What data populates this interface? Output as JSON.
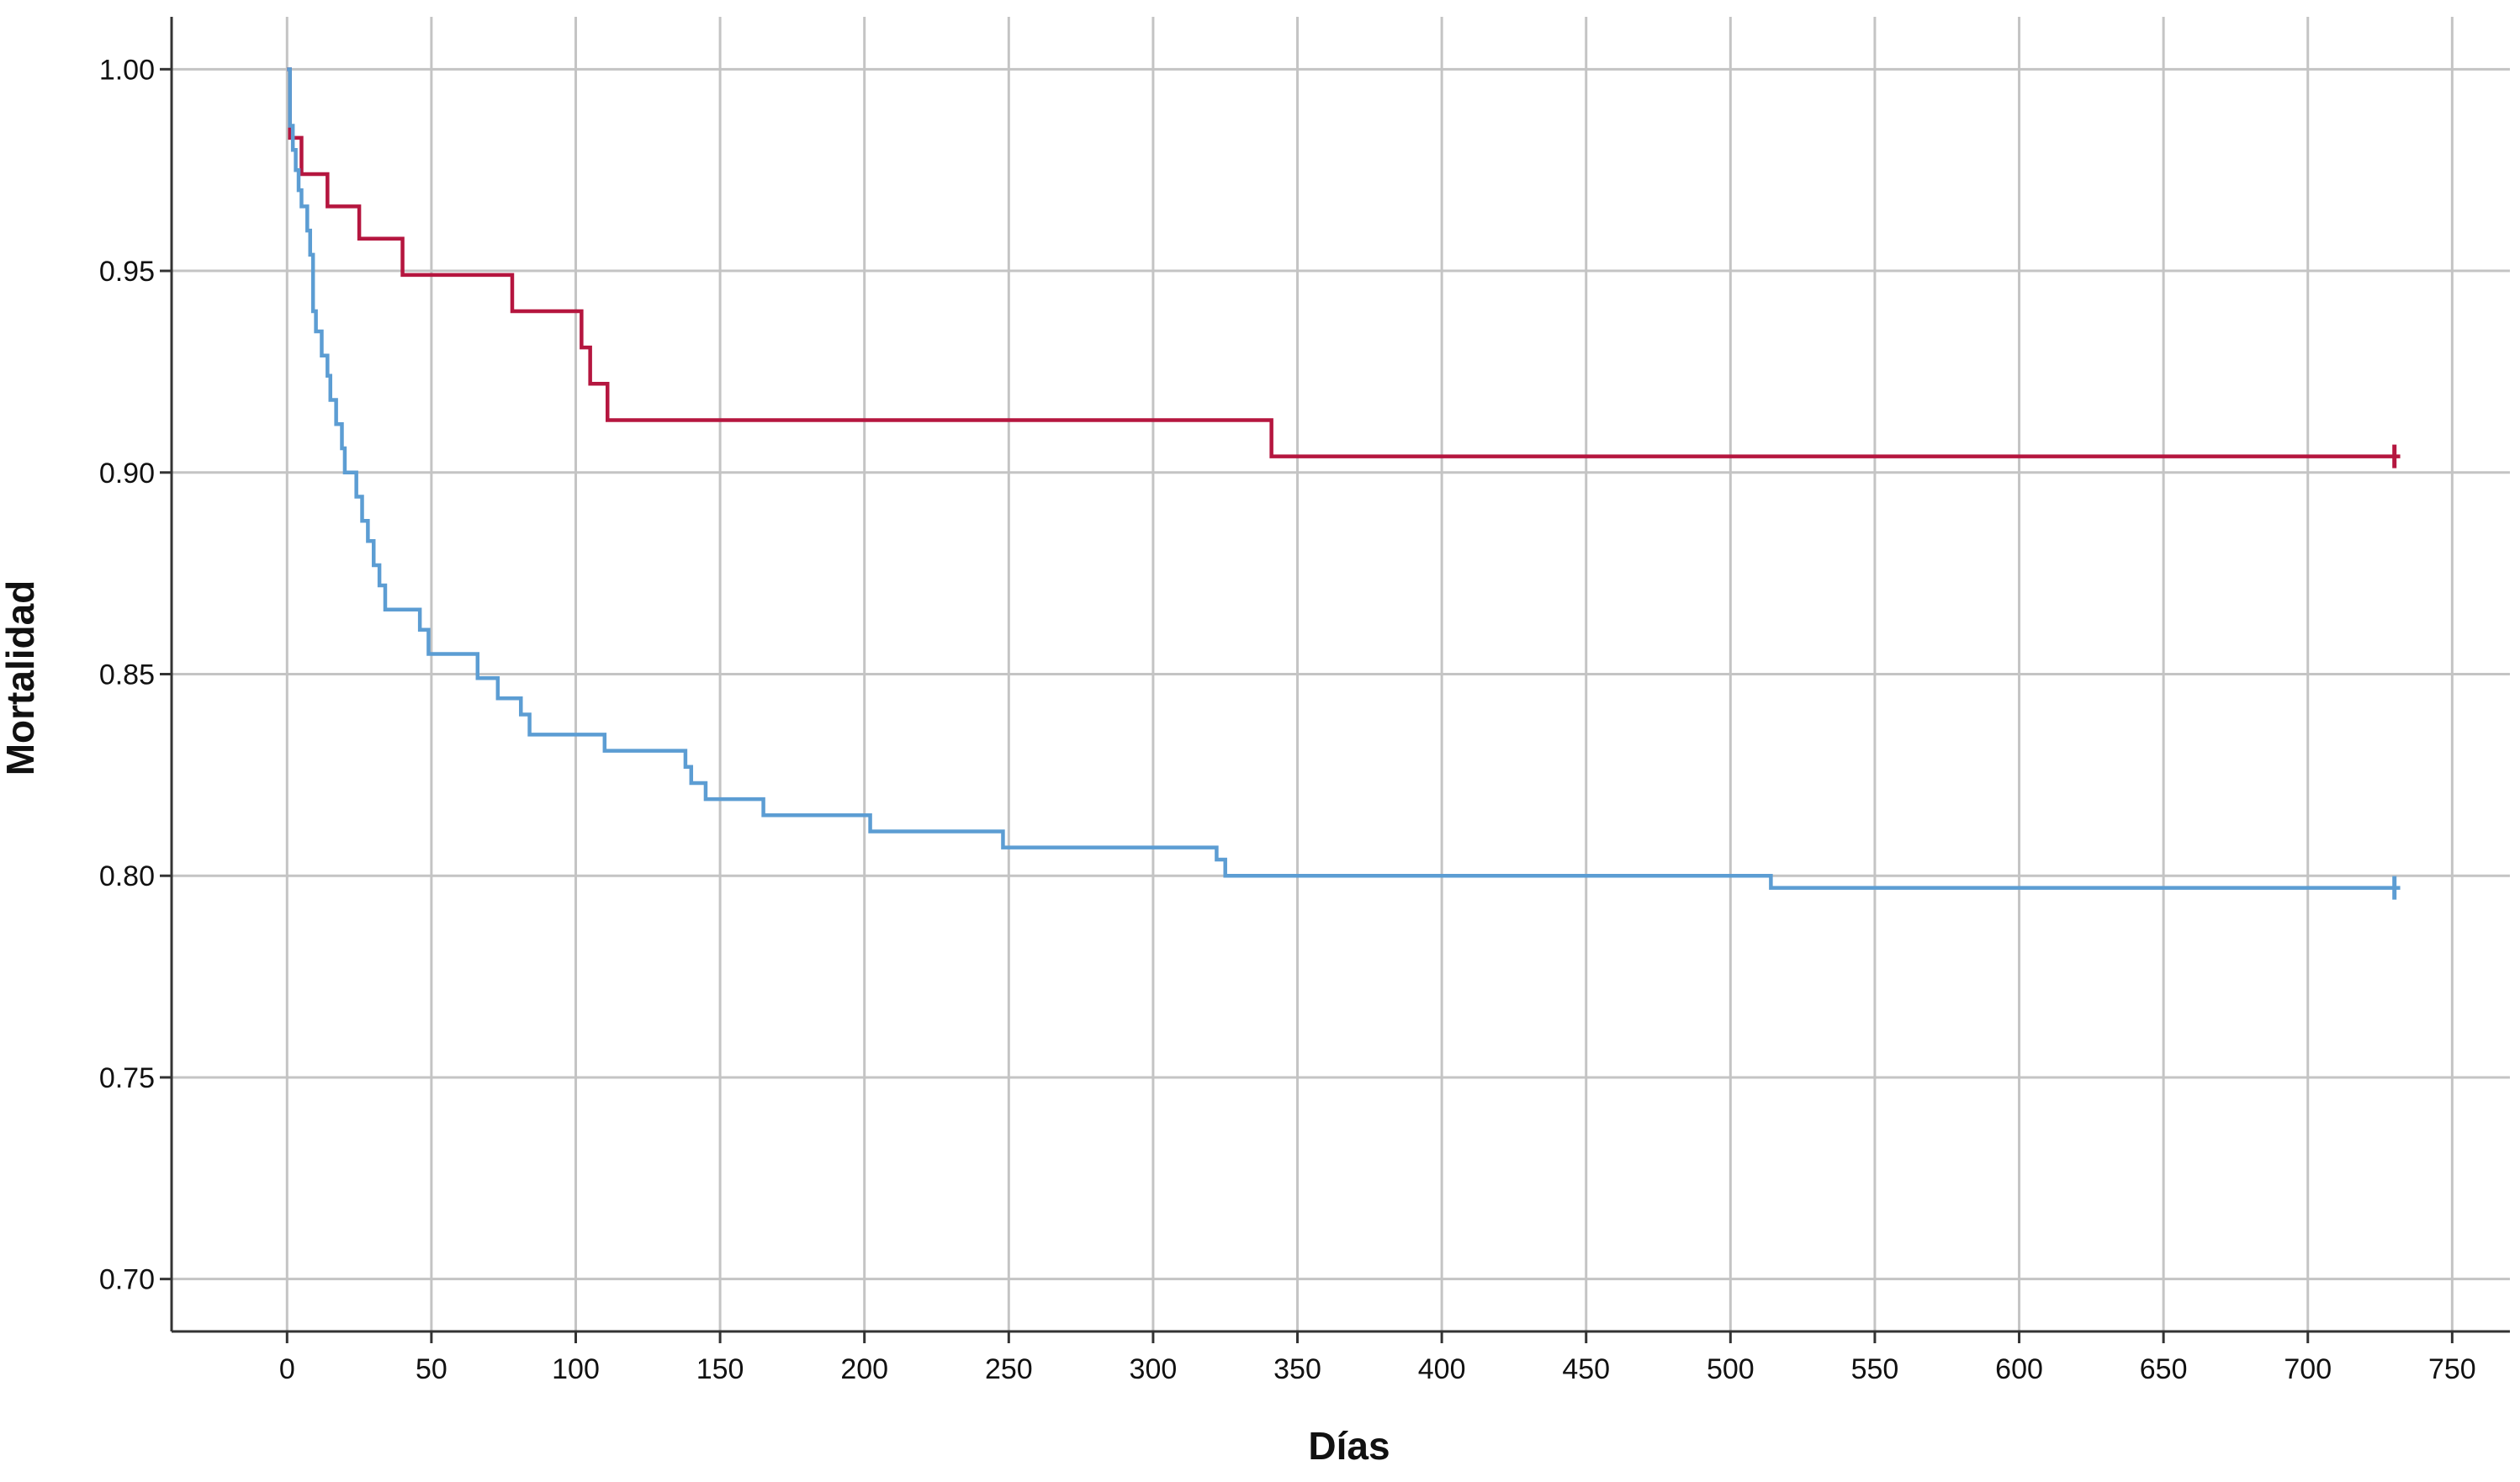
{
  "chart_data": {
    "type": "line",
    "title": "",
    "xlabel": "Días",
    "ylabel": "Mortalidad",
    "xlim": [
      -40,
      770
    ],
    "ylim": [
      0.687,
      1.013
    ],
    "xticks": [
      0,
      50,
      100,
      150,
      200,
      250,
      300,
      350,
      400,
      450,
      500,
      550,
      600,
      650,
      700,
      750
    ],
    "xtick_labels": [
      "0",
      "50",
      "100",
      "150",
      "200",
      "250",
      "300",
      "350",
      "400",
      "450",
      "500",
      "550",
      "600",
      "650",
      "700",
      "750"
    ],
    "yticks": [
      0.7,
      0.75,
      0.8,
      0.85,
      0.9,
      0.95,
      1.0
    ],
    "ytick_labels": [
      "0.70",
      "0.75",
      "0.80",
      "0.85",
      "0.90",
      "0.95",
      "1.00"
    ],
    "grid": true,
    "legend": "none",
    "series": [
      {
        "color": "#b5163f",
        "step": true,
        "points": [
          [
            0,
            1.0
          ],
          [
            1,
            0.983
          ],
          [
            5,
            0.974
          ],
          [
            14,
            0.966
          ],
          [
            25,
            0.958
          ],
          [
            40,
            0.949
          ],
          [
            78,
            0.94
          ],
          [
            102,
            0.931
          ],
          [
            105,
            0.922
          ],
          [
            111,
            0.913
          ],
          [
            341,
            0.904
          ],
          [
            732,
            0.904
          ]
        ],
        "censor": [
          [
            730,
            0.904
          ]
        ]
      },
      {
        "color": "#5c9dd3",
        "step": true,
        "points": [
          [
            0,
            1.0
          ],
          [
            1,
            0.986
          ],
          [
            2,
            0.98
          ],
          [
            3,
            0.975
          ],
          [
            4,
            0.97
          ],
          [
            5,
            0.966
          ],
          [
            7,
            0.96
          ],
          [
            8,
            0.954
          ],
          [
            9,
            0.946
          ],
          [
            9,
            0.94
          ],
          [
            10,
            0.935
          ],
          [
            12,
            0.929
          ],
          [
            14,
            0.924
          ],
          [
            15,
            0.918
          ],
          [
            17,
            0.912
          ],
          [
            19,
            0.906
          ],
          [
            20,
            0.9
          ],
          [
            24,
            0.894
          ],
          [
            26,
            0.888
          ],
          [
            28,
            0.883
          ],
          [
            30,
            0.877
          ],
          [
            32,
            0.872
          ],
          [
            34,
            0.866
          ],
          [
            46,
            0.861
          ],
          [
            49,
            0.855
          ],
          [
            66,
            0.849
          ],
          [
            73,
            0.844
          ],
          [
            81,
            0.84
          ],
          [
            84,
            0.835
          ],
          [
            110,
            0.831
          ],
          [
            138,
            0.827
          ],
          [
            140,
            0.823
          ],
          [
            145,
            0.819
          ],
          [
            165,
            0.815
          ],
          [
            202,
            0.811
          ],
          [
            248,
            0.807
          ],
          [
            322,
            0.804
          ],
          [
            325,
            0.8
          ],
          [
            514,
            0.797
          ],
          [
            732,
            0.797
          ]
        ],
        "censor": [
          [
            730,
            0.797
          ]
        ]
      }
    ]
  }
}
